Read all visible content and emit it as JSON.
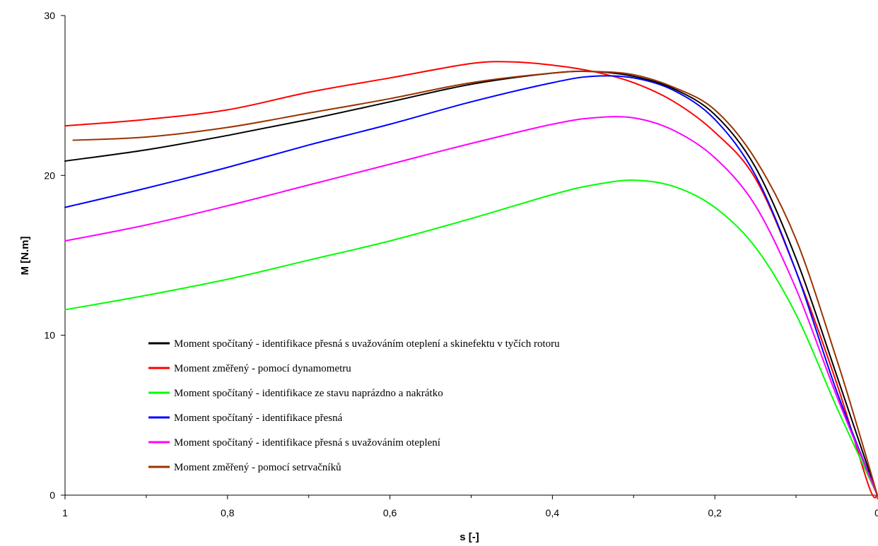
{
  "chart_data": {
    "type": "line",
    "title": "",
    "xlabel": "s [-]",
    "ylabel": "M [N.m]",
    "xlim": [
      1,
      0
    ],
    "ylim": [
      0,
      30
    ],
    "x_reversed": true,
    "x_ticks": [
      1,
      0.8,
      0.6,
      0.4,
      0.2,
      0
    ],
    "x_tick_labels": [
      "1",
      "0,8",
      "0,6",
      "0,4",
      "0,2",
      "0"
    ],
    "y_ticks": [
      0,
      10,
      20,
      30
    ],
    "y_tick_labels": [
      "0",
      "10",
      "20",
      "30"
    ],
    "grid": false,
    "legend_position": "bottom-left",
    "series": [
      {
        "name": "Moment spočítaný - identifikace přesná s uvažováním oteplení a skinefektu v tyčích rotoru",
        "color": "#000000",
        "x": [
          1.0,
          0.9,
          0.8,
          0.7,
          0.6,
          0.5,
          0.4,
          0.35,
          0.3,
          0.25,
          0.2,
          0.15,
          0.1,
          0.05,
          0.02,
          0.0
        ],
        "y": [
          20.9,
          21.6,
          22.5,
          23.5,
          24.6,
          25.7,
          26.4,
          26.5,
          26.2,
          25.4,
          23.8,
          20.5,
          14.8,
          7.5,
          3.0,
          0.0
        ]
      },
      {
        "name": "Moment změřený - pomocí dynamometru",
        "color": "#ff0000",
        "x": [
          1.0,
          0.9,
          0.8,
          0.7,
          0.6,
          0.5,
          0.45,
          0.4,
          0.35,
          0.3,
          0.25,
          0.2,
          0.15,
          0.1,
          0.05,
          0.01,
          0.0
        ],
        "y": [
          23.1,
          23.5,
          24.1,
          25.2,
          26.1,
          27.0,
          27.1,
          26.9,
          26.5,
          25.8,
          24.6,
          22.7,
          19.8,
          14.0,
          7.0,
          0.5,
          0.0
        ]
      },
      {
        "name": "Moment spočítaný - identifikace ze stavu naprázdno a nakrátko",
        "color": "#00ff00",
        "x": [
          1.0,
          0.9,
          0.8,
          0.7,
          0.6,
          0.5,
          0.4,
          0.35,
          0.3,
          0.25,
          0.2,
          0.15,
          0.1,
          0.05,
          0.0
        ],
        "y": [
          11.6,
          12.5,
          13.5,
          14.7,
          15.9,
          17.3,
          18.8,
          19.4,
          19.7,
          19.3,
          18.0,
          15.5,
          11.3,
          5.5,
          0.0
        ]
      },
      {
        "name": "Moment spočítaný - identifikace přesná",
        "color": "#0000ff",
        "x": [
          1.0,
          0.9,
          0.8,
          0.7,
          0.6,
          0.5,
          0.4,
          0.35,
          0.3,
          0.25,
          0.2,
          0.15,
          0.1,
          0.05,
          0.0
        ],
        "y": [
          18.0,
          19.2,
          20.5,
          21.9,
          23.2,
          24.6,
          25.8,
          26.2,
          26.1,
          25.3,
          23.5,
          20.0,
          14.0,
          6.5,
          0.0
        ]
      },
      {
        "name": "Moment spočítaný - identifikace přesná s uvažováním oteplení",
        "color": "#ff00ff",
        "x": [
          1.0,
          0.9,
          0.8,
          0.7,
          0.6,
          0.5,
          0.4,
          0.35,
          0.3,
          0.25,
          0.2,
          0.15,
          0.1,
          0.05,
          0.0
        ],
        "y": [
          15.9,
          16.9,
          18.1,
          19.4,
          20.7,
          22.0,
          23.2,
          23.6,
          23.6,
          22.8,
          21.1,
          18.1,
          12.9,
          6.2,
          0.0
        ]
      },
      {
        "name": "Moment změřený - pomocí setrvačníků",
        "color": "#993300",
        "x": [
          0.99,
          0.9,
          0.8,
          0.7,
          0.6,
          0.5,
          0.4,
          0.35,
          0.3,
          0.25,
          0.2,
          0.15,
          0.1,
          0.05,
          0.02,
          0.0
        ],
        "y": [
          22.2,
          22.4,
          23.0,
          23.9,
          24.8,
          25.8,
          26.4,
          26.5,
          26.3,
          25.5,
          24.1,
          21.0,
          16.0,
          8.5,
          3.5,
          0.0
        ]
      }
    ]
  }
}
